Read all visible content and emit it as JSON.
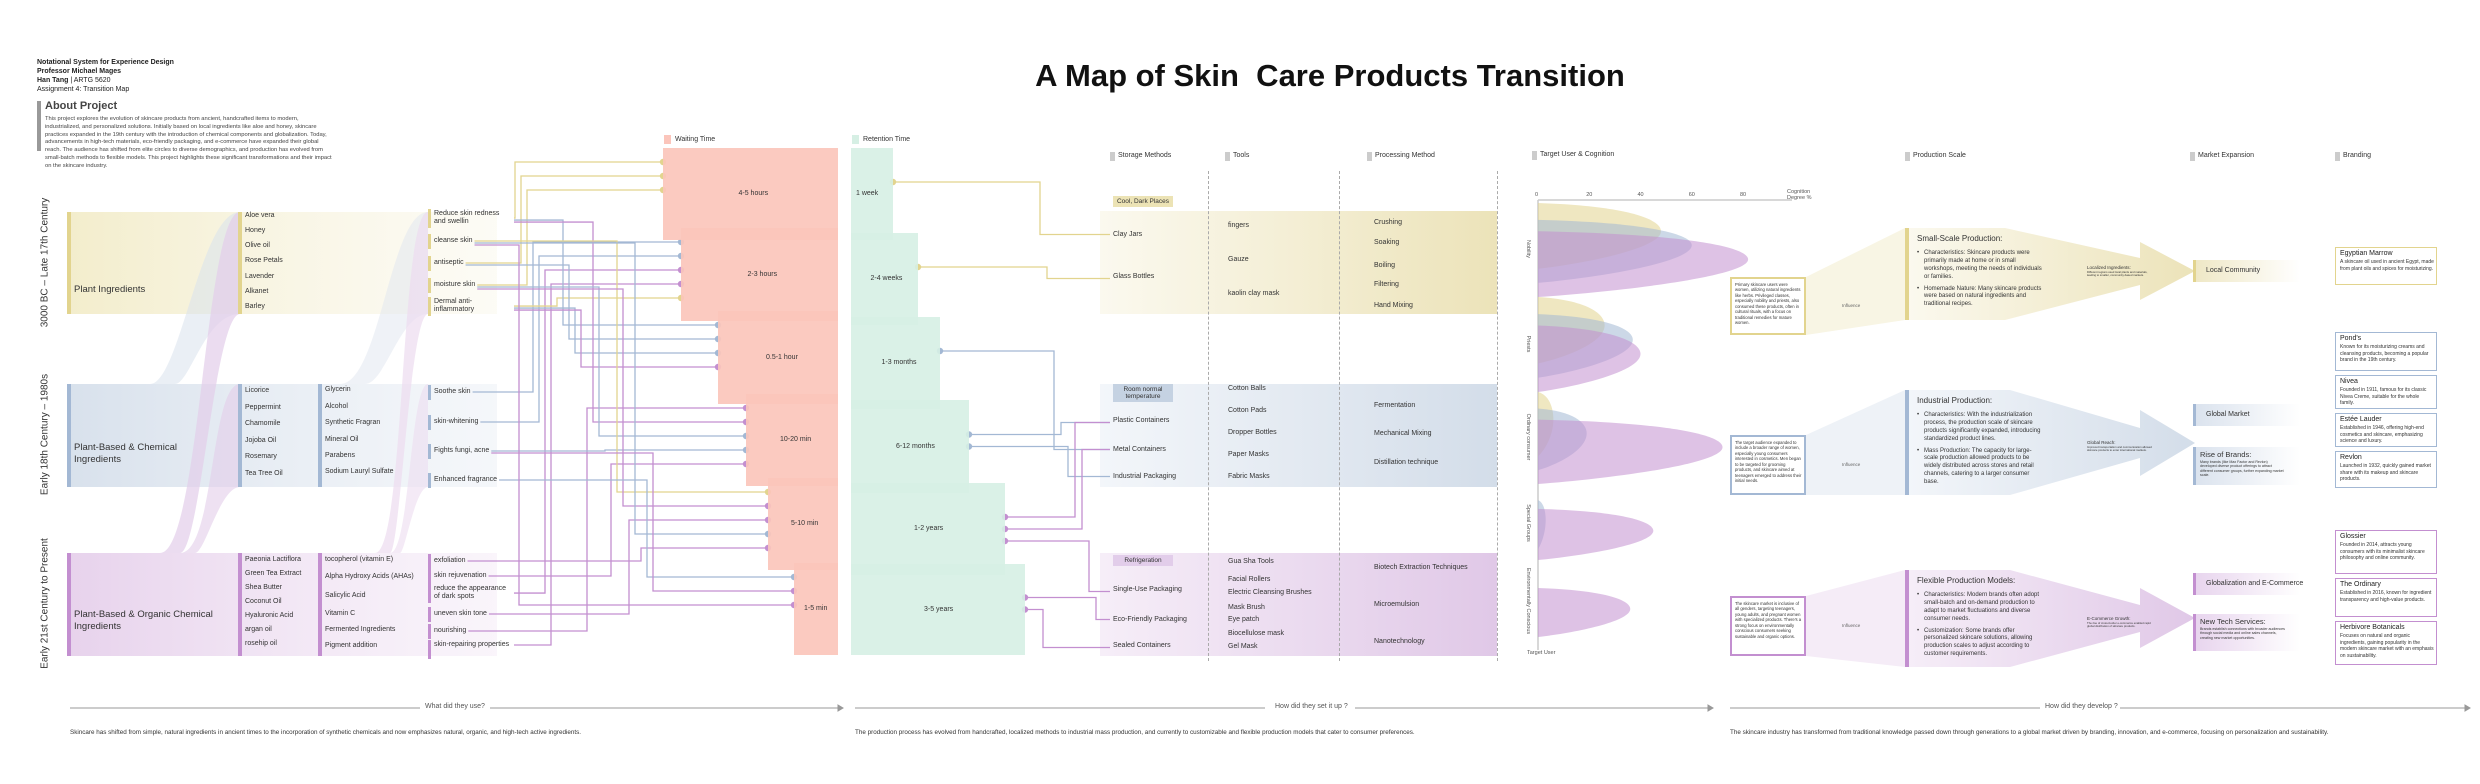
{
  "header": {
    "course": "Notational System for Experience Design",
    "professor": "Professor Michael Mages",
    "author": "Han Tang",
    "course_code": "ARTG 5620",
    "assignment": "Assignment 4: Transition Map"
  },
  "title": "A Map of Skin  Care Products Transition",
  "about": {
    "heading": "About Project",
    "text": "This project explores the evolution of skincare products from ancient, handcrafted items to modern, industrialized, and personalized solutions. Initially based on local ingredients like aloe and honey, skincare practices expanded in the 19th century with the introduction of chemical components and globalization. Today, advancements in high-tech materials, eco-friendly packaging, and e-commerce have expanded their global reach. The audience has shifted from elite circles to diverse demographics, and production has evolved from small-batch methods to flexible models. This project highlights these significant transformations and their impact on the skincare industry."
  },
  "colors": {
    "era1": "#e2d48e",
    "era2": "#a3b8d4",
    "era3": "#c38fd0",
    "waiting": "#fbc5bb",
    "retention": "#d6efe4"
  },
  "eras": [
    {
      "label": "3000 BC – Late 17th Century",
      "category": "Plant Ingredients",
      "ingredients_a": [
        "Aloe vera",
        "Honey",
        "Olive oil",
        "Rose Petals",
        "Lavender",
        "Alkanet",
        "Barley"
      ],
      "ingredients_b": [],
      "functions": [
        "Reduce skin redness and swellin",
        "cleanse skin",
        "antiseptic",
        "moisture skin",
        "Dermal anti-inflammatory"
      ]
    },
    {
      "label": "Early 18th Century – 1980s",
      "category": "Plant-Based & Chemical Ingredients",
      "ingredients_a": [
        "Licorice",
        "Peppermint",
        "Chamomile",
        "Jojoba Oil",
        "Rosemary",
        "Tea Tree Oil"
      ],
      "ingredients_b": [
        "Glycerin",
        "Alcohol",
        "Synthetic Fragran",
        "Mineral Oil",
        "Parabens",
        "Sodium Lauryl Sulfate"
      ],
      "functions": [
        "Soothe skin",
        "skin-whitening",
        "Fights fungi, acne",
        "Enhanced fragrance"
      ]
    },
    {
      "label": "Early 21st Century to Present",
      "category": "Plant-Based & Organic Chemical Ingredients",
      "ingredients_a": [
        "Paeonia Lactiflora",
        "Green Tea Extract",
        "Shea Butter",
        "Coconut Oil",
        "Hyaluronic Acid",
        "argan oil",
        "rosehip oil"
      ],
      "ingredients_b": [
        "tocopherol (vitamin E)",
        "Alpha Hydroxy Acids (AHAs)",
        "Salicylic Acid",
        "Vitamin C",
        "Fermented Ingredients",
        "Pigment addition"
      ],
      "functions": [
        "exfoliation",
        "skin rejuvenation",
        "reduce the appearance of dark spots",
        "uneven skin tone",
        "nourishing",
        "skin-repairing properties"
      ]
    }
  ],
  "waiting": {
    "legend": "Waiting Time",
    "blocks": [
      "4-5 hours",
      "2-3 hours",
      "0.5-1 hour",
      "10-20 min",
      "5-10 min",
      "1-5 min"
    ]
  },
  "retention": {
    "legend": "Retention Time",
    "blocks": [
      "1 week",
      "2-4 weeks",
      "1-3 months",
      "6-12 months",
      "1-2 years",
      "3-5 years"
    ]
  },
  "links": [
    {
      "from": "Reduce skin redness and swellin",
      "to": "4-5 hours",
      "c": "era1"
    },
    {
      "from": "antiseptic",
      "to": "4-5 hours",
      "c": "era1"
    },
    {
      "from": "moisture skin",
      "to": "4-5 hours",
      "c": "era1"
    },
    {
      "from": "Soothe skin",
      "to": "2-3 hours",
      "c": "era2"
    },
    {
      "from": "skin-whitening",
      "to": "2-3 hours",
      "c": "era2"
    },
    {
      "from": "reduce the appearance of dark spots",
      "to": "2-3 hours",
      "c": "era3"
    },
    {
      "from": "skin-repairing properties",
      "to": "2-3 hours",
      "c": "era3"
    },
    {
      "from": "Dermal anti-inflammatory",
      "to": "2-3 hours",
      "c": "era1"
    },
    {
      "from": "Reduce skin redness and swellin",
      "to": "0.5-1 hour",
      "c": "era2"
    },
    {
      "from": "antiseptic",
      "to": "0.5-1 hour",
      "c": "era2"
    },
    {
      "from": "Dermal anti-inflammatory",
      "to": "0.5-1 hour",
      "c": "era2"
    },
    {
      "from": "Dermal anti-inflammatory",
      "to": "0.5-1 hour",
      "c": "era3"
    },
    {
      "from": "nourishing",
      "to": "10-20 min",
      "c": "era3"
    },
    {
      "from": "Reduce skin redness and swellin",
      "to": "10-20 min",
      "c": "era3"
    },
    {
      "from": "moisture skin",
      "to": "10-20 min",
      "c": "era2"
    },
    {
      "from": "Fights fungi, acne",
      "to": "10-20 min",
      "c": "era2"
    },
    {
      "from": "skin rejuvenation",
      "to": "10-20 min",
      "c": "era3"
    },
    {
      "from": "cleanse skin",
      "to": "5-10 min",
      "c": "era1"
    },
    {
      "from": "moisture skin",
      "to": "5-10 min",
      "c": "era3"
    },
    {
      "from": "uneven skin tone",
      "to": "5-10 min",
      "c": "era3"
    },
    {
      "from": "cleanse skin",
      "to": "5-10 min",
      "c": "era2"
    },
    {
      "from": "exfoliation",
      "to": "5-10 min",
      "c": "era3"
    },
    {
      "from": "Enhanced fragrance",
      "to": "1-5 min",
      "c": "era2"
    },
    {
      "from": "Fights fungi, acne",
      "to": "1-5 min",
      "c": "era3"
    },
    {
      "from": "cleanse skin",
      "to": "1-5 min",
      "c": "era3"
    }
  ],
  "storage_links": [
    {
      "from": "1 week",
      "to": "Clay Jars",
      "c": "era1"
    },
    {
      "from": "2-4 weeks",
      "to": "Glass Bottles",
      "c": "era1"
    },
    {
      "from": "1-3 months",
      "to": "Metal Containers",
      "c": "era2"
    },
    {
      "from": "6-12 months",
      "to": "Plastic Containers",
      "c": "era2"
    },
    {
      "from": "6-12 months",
      "to": "Industrial Packaging",
      "c": "era2"
    },
    {
      "from": "1-2 years",
      "to": "Plastic Containers",
      "c": "era3"
    },
    {
      "from": "1-2 years",
      "to": "Metal Containers",
      "c": "era3"
    },
    {
      "from": "1-2 years",
      "to": "Single-Use Packaging",
      "c": "era3"
    },
    {
      "from": "3-5 years",
      "to": "Eco-Friendly Packaging",
      "c": "era3"
    },
    {
      "from": "3-5 years",
      "to": "Sealed Containers",
      "c": "era3"
    }
  ],
  "setup": {
    "headers": {
      "storage": "Storage Methods",
      "tools": "Tools",
      "processing": "Processing Method"
    },
    "eras": [
      {
        "condition": "Cool, Dark Places",
        "storage": [
          "Clay Jars",
          "Glass Bottles"
        ],
        "tools": [
          "fingers",
          "Gauze",
          "kaolin clay mask"
        ],
        "processing": [
          "Crushing",
          "Soaking",
          "Boiling",
          "Filtering",
          "Hand Mixing"
        ]
      },
      {
        "condition": "Room normal temperature",
        "storage": [
          "Plastic Containers",
          "Metal Containers",
          "Industrial Packaging"
        ],
        "tools": [
          "Cotton Balls",
          "Cotton Pads",
          "Dropper Bottles",
          "Paper Masks",
          "Fabric Masks"
        ],
        "processing": [
          "Fermentation",
          "Mechanical Mixing",
          "Distillation technique"
        ]
      },
      {
        "condition": "Refrigeration",
        "storage": [
          "Single-Use Packaging",
          "Eco-Friendly Packaging",
          "Sealed Containers"
        ],
        "tools": [
          "Gua Sha Tools",
          "Facial Rollers",
          "Electric Cleansing Brushes",
          "Mask Brush",
          "Eye patch",
          "Biocellulose mask",
          "Gel Mask"
        ],
        "processing": [
          "Biotech Extraction Techniques",
          "Microemulsion",
          "Nanotechnology"
        ]
      }
    ]
  },
  "chart_data": {
    "type": "area",
    "title": "Target User & Cognition",
    "xlabel": "Cognition Degree %",
    "ylabel": "Target User",
    "xlim": [
      0,
      80
    ],
    "xticks": [
      "0",
      "20",
      "40",
      "60",
      "80"
    ],
    "categories": [
      "Nobility",
      "Priests",
      "Ordinary consumer",
      "Special Groups",
      "Environmentally Conscious"
    ],
    "series": [
      {
        "name": "3000 BC – Late 17th Century",
        "color": "#e2d48e",
        "values": [
          48,
          26,
          6,
          0,
          0
        ]
      },
      {
        "name": "Early 18th Century – 1980s",
        "color": "#a3b8d4",
        "values": [
          60,
          37,
          19,
          3,
          0
        ]
      },
      {
        "name": "Early 21st Century to Present",
        "color": "#c38fd0",
        "values": [
          82,
          40,
          72,
          45,
          36
        ]
      }
    ]
  },
  "influence_label": "Influence",
  "audience": [
    "Primary skincare users were women, utilizing natural ingredients like herbs. Privileged classes, especially nobility and priests, also consumed these products, often in cultural rituals, with a focus on traditional remedies for mature women.",
    "The target audience expanded to include a broader range of women, especially young consumers interested in cosmetics. Men began to be targeted for grooming products, and skincare aimed at teenagers emerged to address their initial needs.",
    "The skincare market is inclusive of all genders, targeting teenagers, young adults, and pregnant women with specialized products. There's a strong focus on environmentally conscious consumers seeking sustainable and organic options."
  ],
  "develop": {
    "headers": {
      "production": "Production Scale",
      "market": "Market Expansion",
      "branding": "Branding"
    },
    "production": [
      {
        "title": "Small-Scale Production:",
        "bullets": [
          "Characteristics: Skincare products were primarily made at home or in small workshops, meeting the needs of individuals or families.",
          "Homemade Nature: Many skincare products were based on natural ingredients and traditional recipes."
        ],
        "flow_title": "Localized Ingredients:",
        "flow_text": "Different regions used local plants and materials, leading to smaller, community-based markets."
      },
      {
        "title": "Industrial Production:",
        "bullets": [
          "Characteristics: With the industrialization process, the production scale of skincare products significantly expanded, introducing standardized product lines.",
          "Mass Production: The capacity for large-scale production allowed products to be widely distributed across stores and retail channels, catering to a larger consumer base."
        ],
        "flow_title": "Global Reach:",
        "flow_text": "Improved transportation and communication allowed skincare products to enter international markets."
      },
      {
        "title": "Flexible Production Models:",
        "bullets": [
          "Characteristics: Modern brands often adopt small-batch and on-demand production to adapt to market fluctuations and diverse consumer needs.",
          "Customization: Some brands offer personalized skincare solutions, allowing production scales to adjust according to customer requirements."
        ],
        "flow_title": "E-Commerce Growth:",
        "flow_text": "The rise of cross-border e-commerce enabled rapid global distribution of skincare products."
      }
    ],
    "market": [
      {
        "title": "Local Community",
        "text": ""
      },
      {
        "title": "Global Market",
        "text": ""
      },
      {
        "title": "Rise of Brands:",
        "text": "Many brands (like Max Factor and Revlon) developed diverse product offerings to attract different consumer groups, further expanding market scale."
      },
      {
        "title": "Globalization and E-Commerce",
        "text": ""
      },
      {
        "title": "New Tech Services:",
        "text": "Brands establish connections with broader audiences through social media and online sales channels, creating new market opportunities."
      }
    ],
    "brands": [
      {
        "name": "Egyptian Marrow",
        "desc": "A skincare oil used in ancient Egypt, made from plant oils and spices for moisturizing."
      },
      {
        "name": "Pond's",
        "desc": "Known for its moisturizing creams and cleansing products, becoming a popular brand in the 19th century."
      },
      {
        "name": "Nivea",
        "desc": "Founded in 1911, famous for its classic Nivea Creme, suitable for the whole family."
      },
      {
        "name": "Estée Lauder",
        "desc": "Established in 1946, offering high-end cosmetics and skincare, emphasizing science and luxury."
      },
      {
        "name": "Revlon",
        "desc": "Launched in 1932, quickly gained market share with its makeup and skincare products."
      },
      {
        "name": "Glossier",
        "desc": "Founded in 2014, attracts young consumers with its minimalist skincare philosophy and online community."
      },
      {
        "name": "The Ordinary",
        "desc": "Established in 2016, known for ingredient transparency and high-value products."
      },
      {
        "name": "Herbivore Botanicals",
        "desc": "Focuses on natural and organic ingredients, gaining popularity in the modern skincare market with an emphasis on sustainability."
      }
    ]
  },
  "footer": [
    {
      "question": "What did they use?",
      "caption": "Skincare has shifted from simple, natural ingredients in ancient times to the incorporation of synthetic chemicals and now emphasizes natural, organic, and high-tech active ingredients."
    },
    {
      "question": "How did they set it up ?",
      "caption": "The production process has evolved from handcrafted, localized methods to industrial mass production, and currently to customizable and flexible production models that cater to consumer preferences."
    },
    {
      "question": "How did they develop ?",
      "caption": "The skincare industry has transformed from traditional knowledge passed down through generations to a global market driven by branding, innovation, and e-commerce, focusing on personalization and sustainability."
    }
  ]
}
